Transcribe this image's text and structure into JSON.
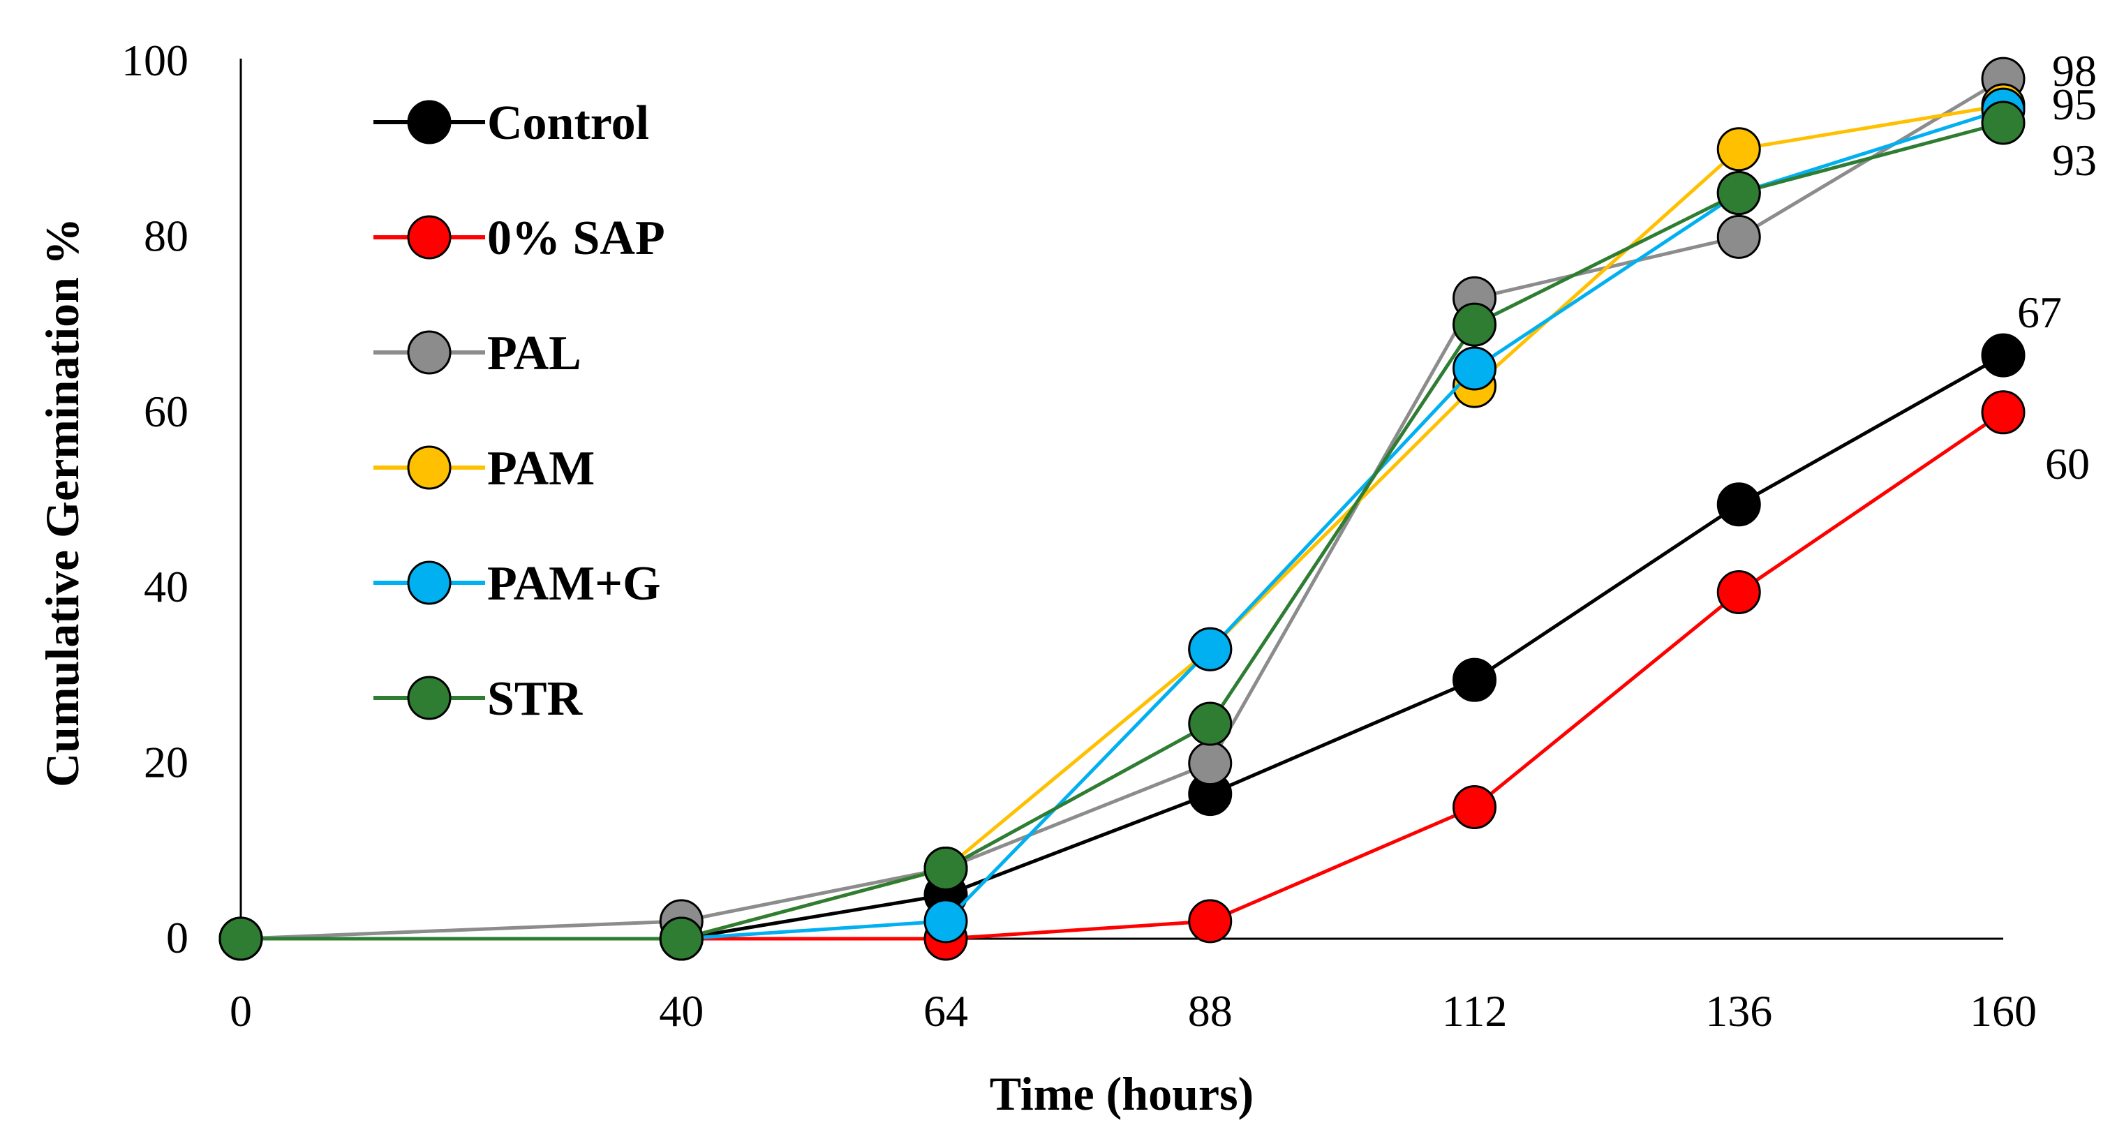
{
  "chart_data": {
    "type": "line",
    "title": "",
    "xlabel": "Time (hours)",
    "ylabel": "Cumulative Germination %",
    "x": [
      0,
      40,
      64,
      88,
      112,
      136,
      160
    ],
    "xlim": [
      0,
      160
    ],
    "ylim": [
      0,
      100
    ],
    "yticks": [
      0,
      20,
      40,
      60,
      80,
      100
    ],
    "grid": false,
    "legend_position": "top-left",
    "series": [
      {
        "name": "Control",
        "color": "#000000",
        "marker_color": "#000000",
        "values": [
          0,
          0,
          5,
          16.5,
          29.5,
          49.5,
          66.5
        ]
      },
      {
        "name": "0% SAP",
        "color": "#ff0000",
        "marker_color": "#ff0000",
        "values": [
          0,
          0,
          0,
          2,
          15,
          39.5,
          60
        ]
      },
      {
        "name": "PAL",
        "color": "#8c8c8c",
        "marker_color": "#8c8c8c",
        "values": [
          0,
          2,
          8,
          20,
          73,
          80,
          98
        ]
      },
      {
        "name": "PAM",
        "color": "#ffc000",
        "marker_color": "#ffc000",
        "values": [
          0,
          0,
          8,
          33,
          63,
          90,
          95
        ]
      },
      {
        "name": "PAM+G",
        "color": "#00b0f0",
        "marker_color": "#00b0f0",
        "values": [
          0,
          0,
          2,
          33,
          65,
          85,
          94.5
        ]
      },
      {
        "name": "STR",
        "color": "#2e7d32",
        "marker_color": "#2e7d32",
        "values": [
          0,
          0,
          8,
          24.5,
          70,
          85,
          93
        ]
      }
    ],
    "end_labels": [
      {
        "series": "PAL",
        "text": "98"
      },
      {
        "series": "PAM",
        "text": "95"
      },
      {
        "series": "STR",
        "text": "93"
      },
      {
        "series": "Control",
        "text": "67"
      },
      {
        "series": "0% SAP",
        "text": "60"
      }
    ]
  }
}
